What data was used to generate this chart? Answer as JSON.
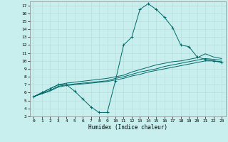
{
  "xlabel": "Humidex (Indice chaleur)",
  "bg_color": "#c8eeee",
  "grid_color": "#b8dede",
  "line_color": "#006868",
  "xlim": [
    -0.5,
    23.5
  ],
  "ylim": [
    3,
    17.5
  ],
  "xticks": [
    0,
    1,
    2,
    3,
    4,
    5,
    6,
    7,
    8,
    9,
    10,
    11,
    12,
    13,
    14,
    15,
    16,
    17,
    18,
    19,
    20,
    21,
    22,
    23
  ],
  "yticks": [
    3,
    4,
    5,
    6,
    7,
    8,
    9,
    10,
    11,
    12,
    13,
    14,
    15,
    16,
    17
  ],
  "line1_x": [
    0,
    1,
    2,
    3,
    4,
    5,
    6,
    7,
    8,
    9,
    10,
    11,
    12,
    13,
    14,
    15,
    16,
    17,
    18,
    19,
    20,
    21,
    22,
    23
  ],
  "line1_y": [
    5.5,
    6.0,
    6.5,
    7.0,
    7.0,
    6.2,
    5.2,
    4.2,
    3.5,
    3.5,
    7.5,
    12.0,
    13.0,
    16.5,
    17.2,
    16.5,
    15.5,
    14.2,
    12.0,
    11.8,
    10.5,
    10.2,
    10.0,
    9.8
  ],
  "line2_x": [
    0,
    2,
    3,
    4,
    9,
    10,
    11,
    12,
    13,
    14,
    15,
    16,
    17,
    18,
    19,
    20,
    21,
    22,
    23
  ],
  "line2_y": [
    5.5,
    6.5,
    7.0,
    7.2,
    7.8,
    8.0,
    8.2,
    8.6,
    8.9,
    9.2,
    9.5,
    9.7,
    9.9,
    10.0,
    10.2,
    10.4,
    10.9,
    10.5,
    10.3
  ],
  "line3_x": [
    0,
    2,
    3,
    4,
    9,
    10,
    11,
    12,
    13,
    14,
    15,
    16,
    17,
    18,
    19,
    20,
    21,
    22,
    23
  ],
  "line3_y": [
    5.5,
    6.3,
    6.8,
    7.0,
    7.5,
    7.8,
    8.0,
    8.3,
    8.6,
    8.8,
    9.0,
    9.3,
    9.5,
    9.7,
    9.9,
    10.1,
    10.3,
    10.2,
    10.1
  ],
  "line4_x": [
    0,
    2,
    3,
    4,
    9,
    10,
    11,
    12,
    13,
    14,
    15,
    16,
    17,
    18,
    19,
    20,
    21,
    22,
    23
  ],
  "line4_y": [
    5.5,
    6.2,
    6.7,
    6.9,
    7.4,
    7.6,
    7.8,
    8.1,
    8.3,
    8.6,
    8.8,
    9.0,
    9.2,
    9.4,
    9.6,
    9.8,
    10.0,
    10.0,
    9.9
  ]
}
